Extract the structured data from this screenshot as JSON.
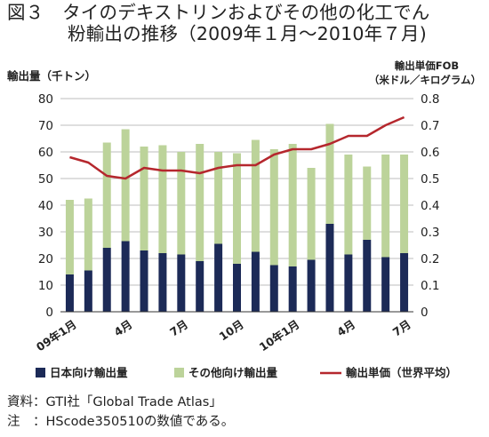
{
  "title": {
    "line1": "図３　タイのデキストリンおよびその他の化工でん",
    "line2": "粉輸出の推移（2009年１月～2010年７月)"
  },
  "footer": {
    "source": "資料：GTI社「Global Trade Atlas」",
    "note": "注　：HScode350510の数値である。"
  },
  "chart_data": {
    "type": "bar",
    "stacked": true,
    "categories": [
      "09年1月",
      "2",
      "3",
      "4月",
      "5",
      "6",
      "7月",
      "8",
      "9",
      "10月",
      "11",
      "12",
      "10年1月",
      "2",
      "3",
      "4月",
      "5",
      "6",
      "7月"
    ],
    "category_labels_shown": [
      "09年1月",
      "4月",
      "7月",
      "10月",
      "10年1月",
      "4月",
      "7月"
    ],
    "series": [
      {
        "name": "日本向け輸出量",
        "color": "#1c2a57",
        "axis": "left",
        "values": [
          14,
          15.5,
          24,
          26.5,
          23,
          22,
          21.5,
          19,
          25.5,
          18,
          22.5,
          17.5,
          17,
          19.5,
          33,
          21.5,
          27,
          20.5,
          22
        ]
      },
      {
        "name": "その他向け輸出量",
        "color": "#bcd39a",
        "axis": "left",
        "values": [
          28,
          27,
          39.5,
          42,
          39,
          40.5,
          38.5,
          44,
          34.5,
          41.5,
          42,
          43.5,
          46,
          34.5,
          37.5,
          37.5,
          27.5,
          38.5,
          37
        ]
      },
      {
        "name": "輸出単価（世界平均）",
        "color": "#b5272d",
        "type": "line",
        "axis": "right",
        "values": [
          0.58,
          0.56,
          0.51,
          0.5,
          0.54,
          0.53,
          0.53,
          0.52,
          0.54,
          0.55,
          0.55,
          0.59,
          0.61,
          0.61,
          0.63,
          0.66,
          0.66,
          0.7,
          0.73
        ]
      }
    ],
    "ylabel": "輸出量（千トン）",
    "y2label_line1": "輸出単価FOB",
    "y2label_line2": "（米ドル／キログラム）",
    "ylim": [
      0,
      80
    ],
    "y2lim": [
      0,
      0.8
    ],
    "yticks": [
      "0",
      "10",
      "20",
      "30",
      "40",
      "50",
      "60",
      "70",
      "80"
    ],
    "y2ticks": [
      "0",
      "0.1",
      "0.2",
      "0.3",
      "0.4",
      "0.5",
      "0.6",
      "0.7",
      "0.8"
    ],
    "grid": true,
    "legend_position": "bottom"
  }
}
